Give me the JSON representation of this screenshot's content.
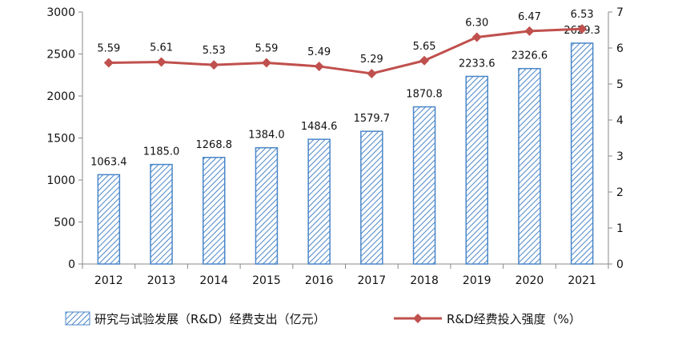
{
  "chart_data": {
    "type": "bar+line",
    "categories": [
      "2012",
      "2013",
      "2014",
      "2015",
      "2016",
      "2017",
      "2018",
      "2019",
      "2020",
      "2021"
    ],
    "series": [
      {
        "name": "研究与试验发展（R&D）经费支出（亿元）",
        "kind": "bar",
        "axis": "left",
        "values": [
          1063.4,
          1185.0,
          1268.8,
          1384.0,
          1484.6,
          1579.7,
          1870.8,
          2233.6,
          2326.6,
          2629.3
        ],
        "labels": [
          "1063.4",
          "1185.0",
          "1268.8",
          "1384.0",
          "1484.6",
          "1579.7",
          "1870.8",
          "2233.6",
          "2326.6",
          "2629.3"
        ]
      },
      {
        "name": "R&D经费投入强度（%）",
        "kind": "line",
        "axis": "right",
        "values": [
          5.59,
          5.61,
          5.53,
          5.59,
          5.49,
          5.29,
          5.65,
          6.3,
          6.47,
          6.53
        ],
        "labels": [
          "5.59",
          "5.61",
          "5.53",
          "5.59",
          "5.49",
          "5.29",
          "5.65",
          "6.30",
          "6.47",
          "6.53"
        ]
      }
    ],
    "y_left": {
      "min": 0,
      "max": 3000,
      "ticks": [
        "0",
        "500",
        "1000",
        "1500",
        "2000",
        "2500",
        "3000"
      ]
    },
    "y_right": {
      "min": 0,
      "max": 7,
      "ticks": [
        "0",
        "1",
        "2",
        "3",
        "4",
        "5",
        "6",
        "7"
      ]
    },
    "legend_position": "bottom",
    "colors": {
      "bar_stroke": "#4a86c8",
      "line": "#c0504d",
      "axis": "#888888"
    }
  }
}
